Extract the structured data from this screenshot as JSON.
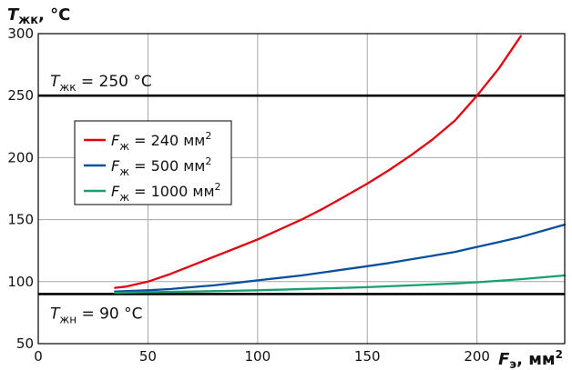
{
  "chart_data": {
    "type": "line",
    "xlabel": {
      "sym": "F",
      "sub": "э",
      "unit": ", мм",
      "sup": "2"
    },
    "ylabel": {
      "sym": "T",
      "sub": "жк",
      "unit": ", °C"
    },
    "xlim": [
      0,
      240
    ],
    "ylim": [
      50,
      300
    ],
    "x_ticks": [
      0,
      50,
      100,
      150,
      200
    ],
    "y_ticks": [
      50,
      100,
      150,
      200,
      250,
      300
    ],
    "grid": true,
    "legend_position": "upper-left",
    "series": [
      {
        "name": "= 240 мм",
        "name_sym": "F",
        "name_sub": "ж",
        "name_sup": "2",
        "color": "#e3000f",
        "x": [
          35,
          40,
          50,
          60,
          70,
          80,
          90,
          100,
          110,
          120,
          130,
          140,
          150,
          160,
          170,
          180,
          190,
          200,
          210,
          220
        ],
        "y": [
          95,
          96,
          100,
          106,
          113,
          120,
          127,
          134,
          142,
          150,
          159,
          169,
          179,
          190,
          202,
          215,
          230,
          250,
          272,
          298
        ]
      },
      {
        "name": "= 500 мм",
        "name_sym": "F",
        "name_sub": "ж",
        "name_sup": "2",
        "color": "#0a4f9e",
        "x": [
          35,
          50,
          60,
          70,
          80,
          90,
          100,
          110,
          120,
          130,
          140,
          150,
          160,
          170,
          180,
          190,
          200,
          210,
          220,
          230,
          240
        ],
        "y": [
          92,
          93,
          94,
          95.5,
          97,
          99,
          101,
          103,
          105,
          107.5,
          110,
          112.5,
          115,
          118,
          121,
          124,
          128,
          132,
          136,
          141,
          146
        ]
      },
      {
        "name": "= 1000 мм",
        "name_sym": "F",
        "name_sub": "ж",
        "name_sup": "2",
        "color": "#1aa06e",
        "x": [
          35,
          50,
          70,
          100,
          130,
          150,
          170,
          190,
          200,
          220,
          240
        ],
        "y": [
          91,
          91.5,
          92,
          93,
          94.5,
          95.5,
          97,
          98.5,
          99.5,
          102,
          105
        ]
      }
    ],
    "hlines": [
      {
        "y": 250,
        "sym": "T",
        "sub": "жк",
        "text": "= 250 °C"
      },
      {
        "y": 90,
        "sym": "T",
        "sub": "жн",
        "text": "= 90 °C"
      }
    ]
  }
}
